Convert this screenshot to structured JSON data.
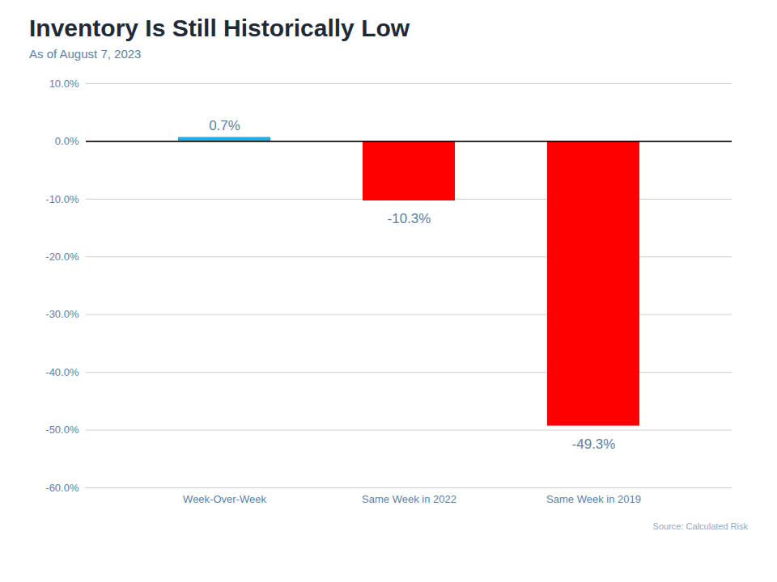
{
  "chart_data": {
    "type": "bar",
    "title": "Inventory Is Still Historically Low",
    "subtitle": "As of August 7, 2023",
    "source": "Source: Calculated Risk",
    "categories": [
      "Week-Over-Week",
      "Same Week in 2022",
      "Same Week in 2019"
    ],
    "values": [
      0.7,
      -10.3,
      -49.3
    ],
    "value_labels": [
      "0.7%",
      "-10.3%",
      "-49.3%"
    ],
    "data_labels": true,
    "colors": [
      "#29abe2",
      "#ff0000",
      "#ff0000"
    ],
    "ylim": [
      -60,
      10
    ],
    "yticks": [
      {
        "value": 10,
        "label": "10.0%"
      },
      {
        "value": 0,
        "label": "0.0%"
      },
      {
        "value": -10,
        "label": "-10.0%"
      },
      {
        "value": -20,
        "label": "-20.0%"
      },
      {
        "value": -30,
        "label": "-30.0%"
      },
      {
        "value": -40,
        "label": "-40.0%"
      },
      {
        "value": -50,
        "label": "-50.0%"
      },
      {
        "value": -60,
        "label": "-60.0%"
      }
    ],
    "grid": true
  }
}
